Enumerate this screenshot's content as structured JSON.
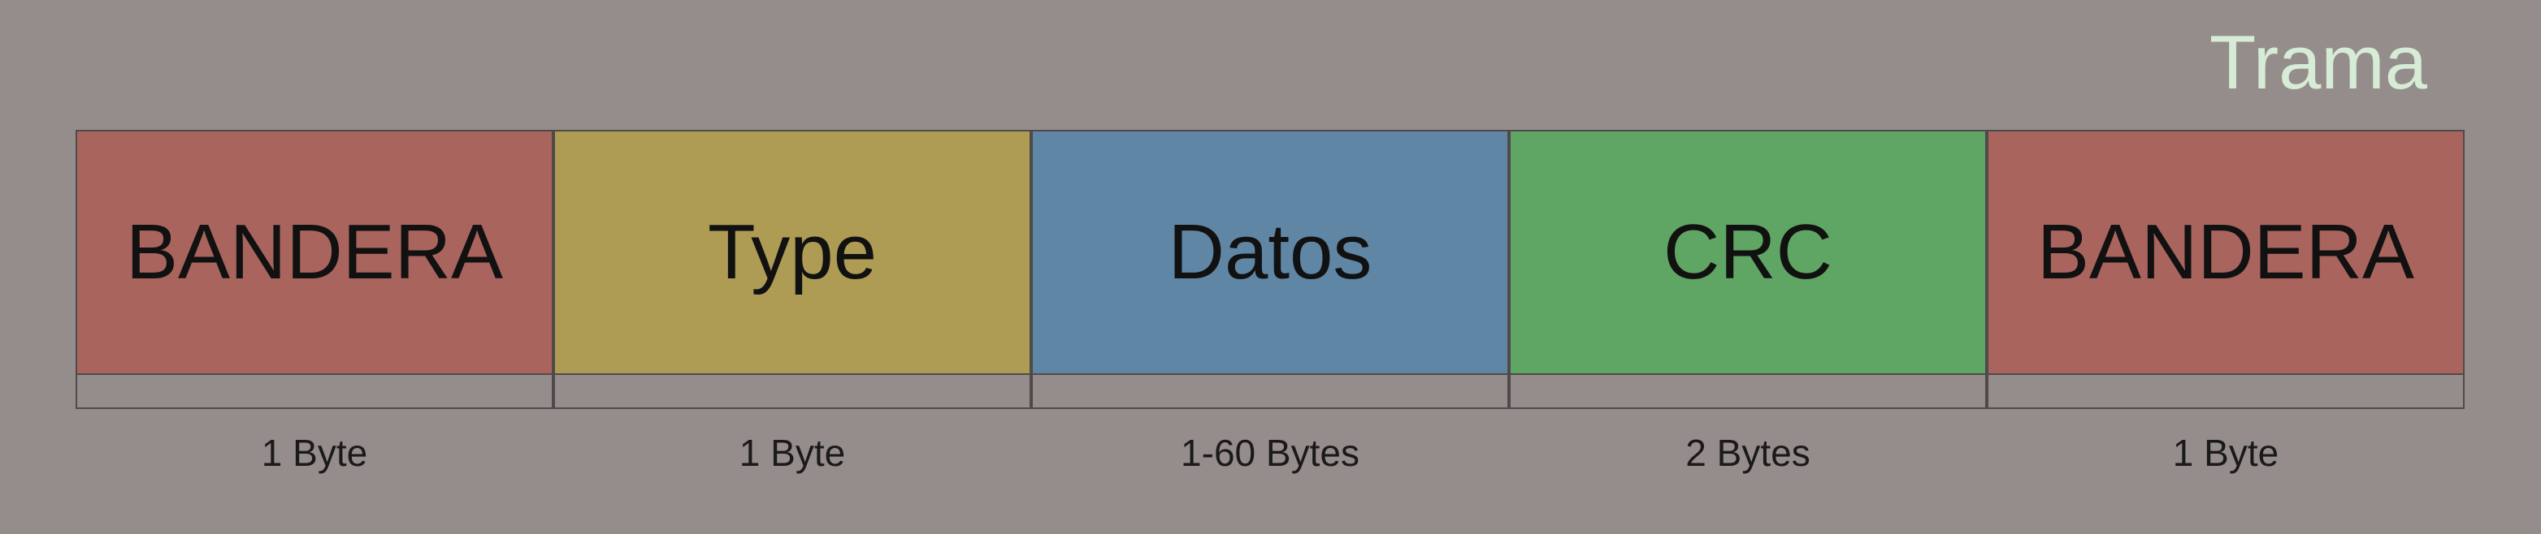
{
  "title": "Trama",
  "fields": [
    {
      "label": "BANDERA",
      "size": "1 Byte",
      "color": "#a9645e"
    },
    {
      "label": "Type",
      "size": "1 Byte",
      "color": "#ae9c55"
    },
    {
      "label": "Datos",
      "size": "1-60 Bytes",
      "color": "#6086a5"
    },
    {
      "label": "CRC",
      "size": "2 Bytes",
      "color": "#5fa563"
    },
    {
      "label": "BANDERA",
      "size": "1 Byte",
      "color": "#a9645e"
    }
  ]
}
